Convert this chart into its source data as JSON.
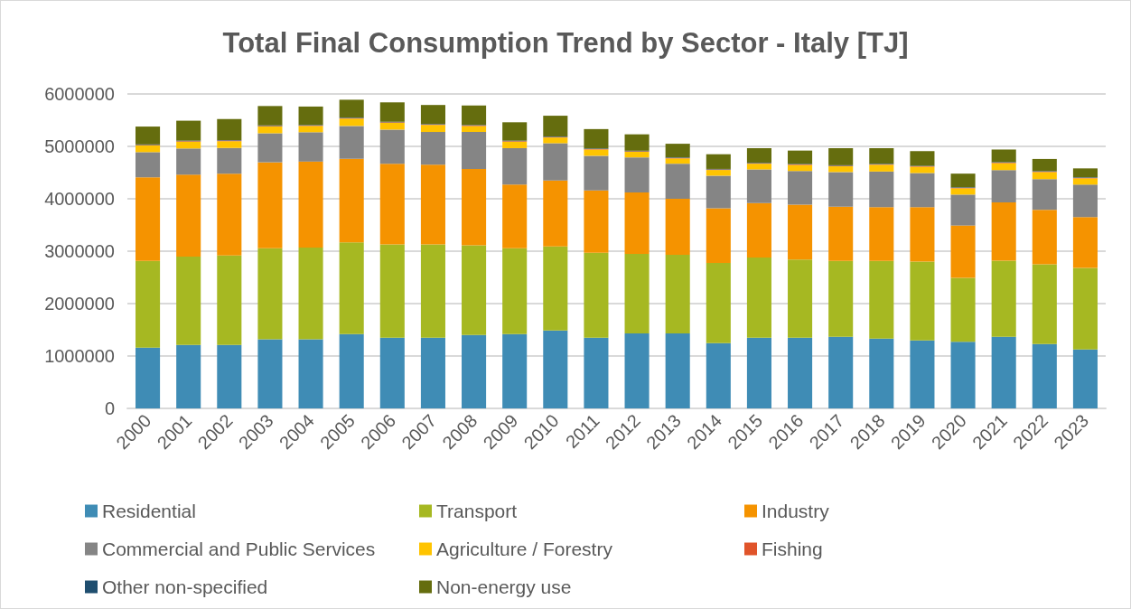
{
  "chart_data": {
    "type": "bar",
    "title": "Total Final Consumption Trend by Sector - Italy [TJ]",
    "categories": [
      "2000",
      "2001",
      "2002",
      "2003",
      "2004",
      "2005",
      "2006",
      "2007",
      "2008",
      "2009",
      "2010",
      "2011",
      "2012",
      "2013",
      "2014",
      "2015",
      "2016",
      "2017",
      "2018",
      "2019",
      "2020",
      "2021",
      "2022",
      "2023"
    ],
    "stacked": true,
    "series": [
      {
        "name": "Residential",
        "color": "#3f8cb5",
        "values": [
          1158000,
          1210000,
          1210000,
          1320000,
          1320000,
          1420000,
          1350000,
          1350000,
          1400000,
          1420000,
          1485000,
          1350000,
          1430000,
          1430000,
          1244000,
          1350000,
          1350000,
          1365000,
          1330000,
          1296000,
          1270000,
          1365000,
          1227000,
          1124000
        ]
      },
      {
        "name": "Transport",
        "color": "#a6b822",
        "values": [
          1657000,
          1686000,
          1710000,
          1736000,
          1750000,
          1750000,
          1780000,
          1780000,
          1710000,
          1636000,
          1605000,
          1620000,
          1520000,
          1500000,
          1531000,
          1530000,
          1490000,
          1450000,
          1485000,
          1504000,
          1220000,
          1455000,
          1523000,
          1556000
        ]
      },
      {
        "name": "Industry",
        "color": "#f59300",
        "values": [
          1595000,
          1564000,
          1560000,
          1640000,
          1640000,
          1595000,
          1540000,
          1520000,
          1460000,
          1214000,
          1260000,
          1190000,
          1170000,
          1070000,
          1045000,
          1040000,
          1050000,
          1035000,
          1025000,
          1040000,
          1000000,
          1110000,
          1040000,
          970000
        ]
      },
      {
        "name": "Commercial and Public Services",
        "color": "#858585",
        "values": [
          480000,
          500000,
          490000,
          554000,
          560000,
          625000,
          650000,
          625000,
          705000,
          696000,
          710000,
          660000,
          670000,
          670000,
          620000,
          640000,
          640000,
          660000,
          680000,
          650000,
          590000,
          617000,
          585000,
          620000
        ]
      },
      {
        "name": "Agriculture / Forestry",
        "color": "#ffc400",
        "values": [
          127000,
          130000,
          130000,
          130000,
          120000,
          140000,
          130000,
          135000,
          115000,
          124000,
          110000,
          120000,
          107000,
          100000,
          110000,
          110000,
          115000,
          110000,
          130000,
          120000,
          120000,
          133000,
          135000,
          120000
        ]
      },
      {
        "name": "Fishing",
        "color": "#e0542a",
        "values": [
          10000,
          10000,
          10000,
          10000,
          10000,
          10000,
          10000,
          10000,
          10000,
          10000,
          10000,
          10000,
          10000,
          10000,
          10000,
          10000,
          10000,
          10000,
          10000,
          10000,
          10000,
          10000,
          10000,
          10000
        ]
      },
      {
        "name": "Other non-specified",
        "color": "#1f4e6f",
        "values": [
          10000,
          10000,
          10000,
          10000,
          10000,
          10000,
          10000,
          10000,
          10000,
          10000,
          10000,
          10000,
          10000,
          10000,
          10000,
          10000,
          10000,
          10000,
          10000,
          10000,
          10000,
          10000,
          10000,
          10000
        ]
      },
      {
        "name": "Non-energy use",
        "color": "#656d0e",
        "values": [
          341000,
          380000,
          400000,
          370000,
          350000,
          340000,
          370000,
          360000,
          370000,
          350000,
          395000,
          370000,
          313000,
          260000,
          280000,
          276000,
          255000,
          326000,
          296000,
          280000,
          260000,
          240000,
          230000,
          170000
        ]
      }
    ],
    "ylim": [
      0,
      6000000
    ],
    "yticks": [
      0,
      1000000,
      2000000,
      3000000,
      4000000,
      5000000,
      6000000
    ],
    "grid": "y",
    "legend": "bottom"
  }
}
